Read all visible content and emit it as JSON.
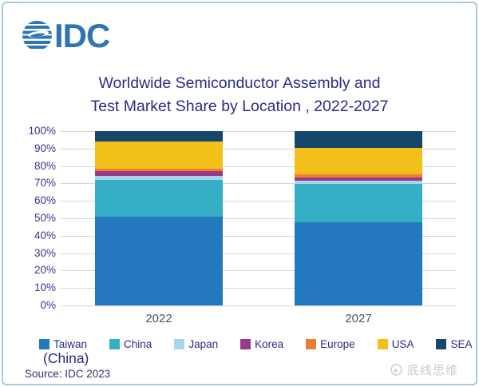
{
  "logo": {
    "text": "IDC"
  },
  "title": {
    "line1": "Worldwide Semiconductor Assembly and",
    "line2": "Test Market Share by Location , 2022-2027"
  },
  "chart_data": {
    "type": "bar",
    "stacked": true,
    "categories": [
      "2022",
      "2027"
    ],
    "series": [
      {
        "name": "Taiwan",
        "color": "#2478bd",
        "values": [
          51.0,
          47.5
        ]
      },
      {
        "name": "China",
        "color": "#36aec6",
        "values": [
          21.0,
          22.3
        ]
      },
      {
        "name": "Japan",
        "color": "#a8d6e8",
        "values": [
          2.3,
          1.8
        ]
      },
      {
        "name": "Korea",
        "color": "#983a8b",
        "values": [
          2.8,
          1.8
        ]
      },
      {
        "name": "Europe",
        "color": "#ed7d31",
        "values": [
          1.4,
          1.9
        ]
      },
      {
        "name": "USA",
        "color": "#f2c018",
        "values": [
          15.7,
          15.3
        ]
      },
      {
        "name": "SEA",
        "color": "#17466b",
        "values": [
          5.8,
          9.4
        ]
      }
    ],
    "ylim": [
      0,
      100
    ],
    "yticks": [
      "100%",
      "90%",
      "80%",
      "70%",
      "60%",
      "50%",
      "40%",
      "30%",
      "20%",
      "10%",
      "0%"
    ],
    "grid": true,
    "legend_position": "bottom",
    "units": "percent market share"
  },
  "legend": {
    "items": [
      "Taiwan",
      "China",
      "Japan",
      "Korea",
      "Europe",
      "USA",
      "SEA"
    ],
    "taiwan_note": "(China)"
  },
  "source": "Source: IDC 2023",
  "watermark": "底线思维",
  "colors": {
    "title_text": "#2d2b86",
    "axis_text": "#3f3488",
    "xlabel_text": "#44546a",
    "card_border": "#a9c9e0",
    "logo_blue": "#2e75b5",
    "gridline": "#d6d6d6"
  }
}
